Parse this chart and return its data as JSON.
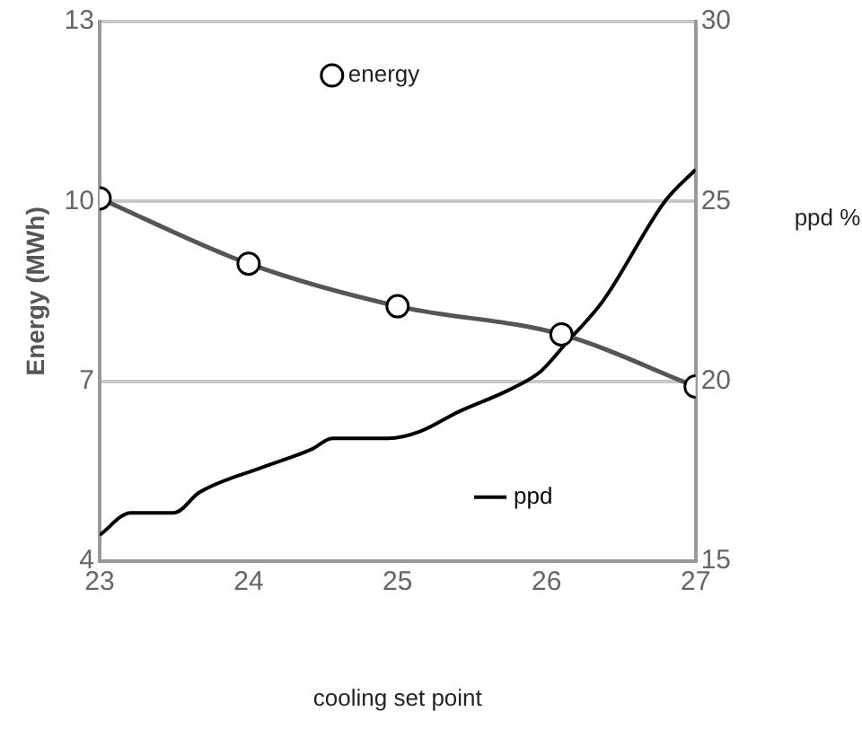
{
  "chart_data": {
    "type": "line",
    "xlabel": "cooling set point",
    "ylabel": "Energy (MWh)",
    "y2label": "ppd %",
    "xlim": [
      23,
      27
    ],
    "xticks": [
      23,
      24,
      25,
      26,
      27
    ],
    "ylim": [
      4,
      13
    ],
    "yticks": [
      4,
      7,
      10,
      13
    ],
    "y2lim": [
      15,
      30
    ],
    "y2ticks": [
      15,
      20,
      25,
      30
    ],
    "grid": "y",
    "legend": "top",
    "marker": "circle",
    "line_style": "solid",
    "series": [
      {
        "name": "energy",
        "color": "#555555",
        "x": [
          23,
          24,
          25,
          26.1,
          27
        ],
        "values": [
          10.05,
          8.96,
          8.25,
          7.78,
          6.91
        ]
      },
      {
        "name": "ppd",
        "color": "#000000",
        "axis": "y2",
        "marker": "none",
        "x": [
          23,
          23.21,
          23.5,
          23.67,
          24.09,
          24.43,
          24.56,
          24.94,
          25.15,
          25.41,
          25.75,
          25.96,
          26.13,
          26.38,
          26.8,
          27
        ],
        "values": [
          15.72,
          16.34,
          16.34,
          16.91,
          17.6,
          18.12,
          18.41,
          18.41,
          18.6,
          19.15,
          19.76,
          20.27,
          21.05,
          22.24,
          25.03,
          25.88
        ]
      }
    ]
  }
}
